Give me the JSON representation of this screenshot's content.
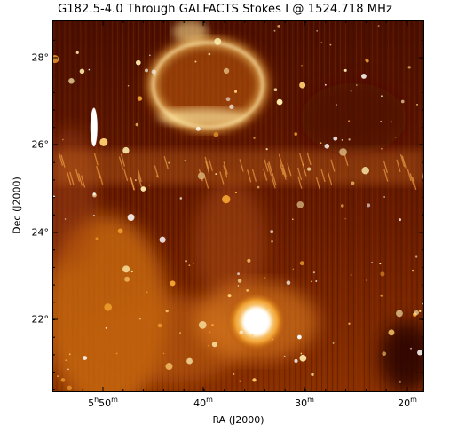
{
  "figure": {
    "title": "G182.5-4.0 Through GALFACTS Stokes I @ 1524.718 MHz",
    "xlabel": "RA (J2000)",
    "ylabel": "Dec (J2000)",
    "x_ticks": [
      {
        "hour": "5",
        "h": "h",
        "min": "50",
        "m": "m"
      },
      {
        "min": "40",
        "m": "m"
      },
      {
        "min": "30",
        "m": "m"
      },
      {
        "min": "20",
        "m": "m"
      }
    ],
    "y_ticks": [
      "28°",
      "26°",
      "24°",
      "22°"
    ],
    "colormap": [
      "#2a0500",
      "#6b1a00",
      "#b04a00",
      "#e08a20",
      "#ffd070",
      "#ffffff"
    ]
  }
}
